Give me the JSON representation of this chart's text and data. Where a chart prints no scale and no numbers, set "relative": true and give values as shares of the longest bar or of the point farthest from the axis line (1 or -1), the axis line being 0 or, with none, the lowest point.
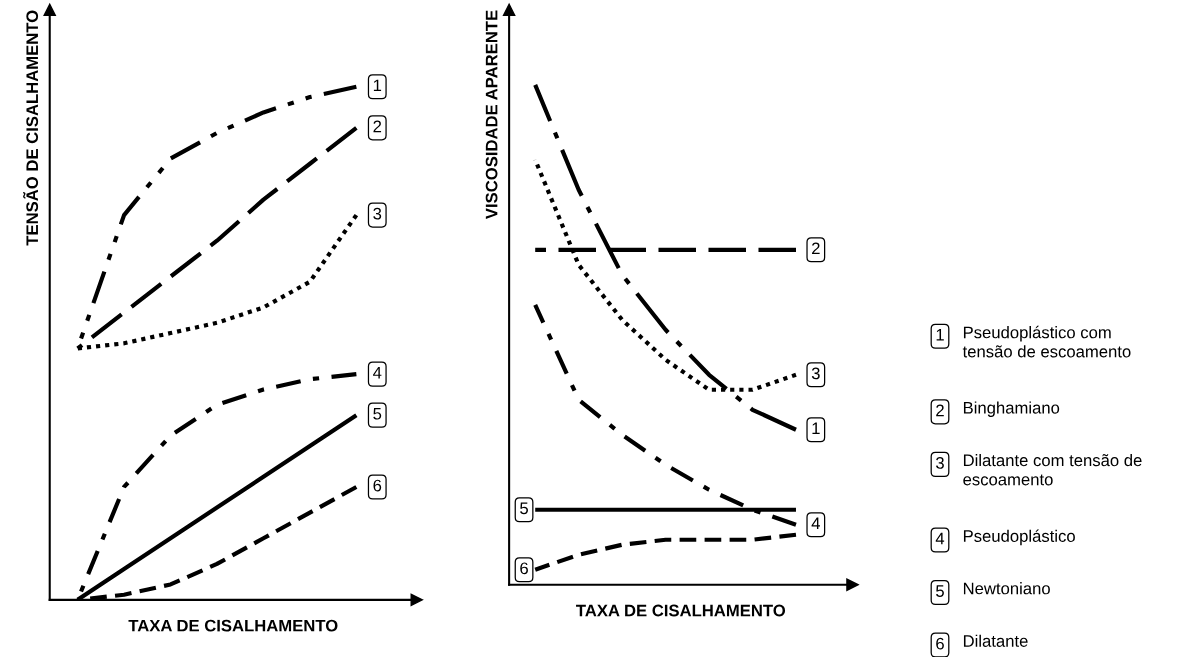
{
  "chart_data": [
    {
      "type": "line",
      "relative": true,
      "xlabel": "TAXA DE CISALHAMENTO",
      "ylabel": "TENSÃO DE CISALHAMENTO",
      "tick_labels": false,
      "categories": [
        null,
        null,
        null,
        null,
        null,
        null,
        null
      ],
      "series": [
        {
          "name": "1",
          "color": "#000000",
          "line_style": "dashdotdot",
          "values": [
            0.49,
            0.75,
            0.86,
            0.91,
            0.95,
            0.98,
            1.0
          ]
        },
        {
          "name": "2",
          "color": "#000000",
          "line_style": "longdash",
          "values": [
            0.49,
            0.56,
            0.63,
            0.7,
            0.78,
            0.85,
            0.92
          ]
        },
        {
          "name": "3",
          "color": "#000000",
          "line_style": "dotted",
          "values": [
            0.49,
            0.5,
            0.52,
            0.54,
            0.57,
            0.62,
            0.75
          ]
        },
        {
          "name": "4",
          "color": "#000000",
          "line_style": "dashdot",
          "values": [
            0,
            0.22,
            0.32,
            0.38,
            0.41,
            0.43,
            0.44
          ]
        },
        {
          "name": "5",
          "color": "#000000",
          "line_style": "solid",
          "values": [
            0,
            0.06,
            0.12,
            0.18,
            0.24,
            0.3,
            0.36
          ]
        },
        {
          "name": "6",
          "color": "#000000",
          "line_style": "dashed",
          "values": [
            0,
            0.01,
            0.03,
            0.07,
            0.12,
            0.17,
            0.22
          ]
        }
      ]
    },
    {
      "type": "line",
      "relative": true,
      "xlabel": "TAXA DE CISALHAMENTO",
      "ylabel": "VISCOSIDADE APARENTE",
      "tick_labels": false,
      "categories": [
        null,
        null,
        null,
        null,
        null,
        null,
        null
      ],
      "series": [
        {
          "name": "1",
          "color": "#000000",
          "line_style": "longdashdot",
          "values": [
            1.0,
            0.79,
            0.62,
            0.51,
            0.42,
            0.35,
            0.31
          ]
        },
        {
          "name": "2",
          "color": "#000000",
          "line_style": "longdash",
          "values": [
            0.67,
            0.67,
            0.67,
            0.67,
            0.67,
            0.67,
            0.67
          ]
        },
        {
          "name": "3",
          "color": "#000000",
          "line_style": "dotted",
          "values": [
            0.85,
            0.64,
            0.53,
            0.45,
            0.39,
            0.39,
            0.42
          ]
        },
        {
          "name": "4",
          "color": "#000000",
          "line_style": "dashdot",
          "values": [
            0.56,
            0.37,
            0.3,
            0.24,
            0.19,
            0.15,
            0.12
          ]
        },
        {
          "name": "5",
          "color": "#000000",
          "line_style": "solid",
          "values": [
            0.15,
            0.15,
            0.15,
            0.15,
            0.15,
            0.15,
            0.15
          ]
        },
        {
          "name": "6",
          "color": "#000000",
          "line_style": "dashed",
          "values": [
            0.03,
            0.06,
            0.08,
            0.09,
            0.09,
            0.09,
            0.1
          ]
        }
      ],
      "annotations": [
        "Pseudoplástico com\ntensão de escoamento",
        "Binghamiano",
        "Dilatante com tensão de\nescoamento",
        "Pseudoplástico",
        "Newtoniano",
        "Dilatante"
      ]
    }
  ]
}
